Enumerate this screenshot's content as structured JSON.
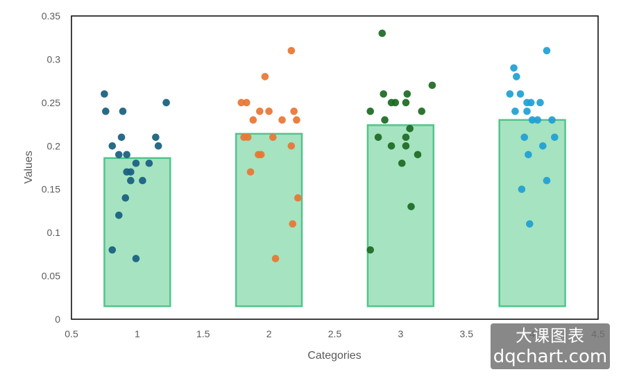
{
  "chart_data": {
    "type": "scatter",
    "xlabel": "Categories",
    "ylabel": "Values",
    "xlim": [
      0.5,
      4.5
    ],
    "ylim": [
      0,
      0.35
    ],
    "x_ticks": [
      "0.5",
      "1",
      "1.5",
      "2",
      "2.5",
      "3",
      "3.5",
      "4",
      "4.5"
    ],
    "y_ticks": [
      "0",
      "0.05",
      "0.1",
      "0.15",
      "0.2",
      "0.25",
      "0.3",
      "0.35"
    ],
    "grid": false,
    "bars": {
      "x": [
        1,
        2,
        3,
        4
      ],
      "bottom": 0.015,
      "top": [
        0.186,
        0.214,
        0.224,
        0.23
      ],
      "width": 0.5,
      "fill": "#a6e3c1",
      "stroke": "#52c48a"
    },
    "series": [
      {
        "color": "#17607f",
        "points": [
          [
            0.75,
            0.26
          ],
          [
            0.76,
            0.24
          ],
          [
            0.89,
            0.24
          ],
          [
            1.22,
            0.25
          ],
          [
            0.81,
            0.2
          ],
          [
            0.88,
            0.21
          ],
          [
            0.86,
            0.19
          ],
          [
            0.92,
            0.19
          ],
          [
            1.14,
            0.21
          ],
          [
            1.16,
            0.2
          ],
          [
            0.99,
            0.18
          ],
          [
            1.09,
            0.18
          ],
          [
            0.92,
            0.17
          ],
          [
            0.95,
            0.17
          ],
          [
            0.95,
            0.16
          ],
          [
            1.04,
            0.16
          ],
          [
            0.91,
            0.14
          ],
          [
            0.86,
            0.12
          ],
          [
            0.81,
            0.08
          ],
          [
            0.99,
            0.07
          ]
        ]
      },
      {
        "color": "#e87634",
        "points": [
          [
            2.17,
            0.31
          ],
          [
            1.97,
            0.28
          ],
          [
            1.79,
            0.25
          ],
          [
            1.83,
            0.25
          ],
          [
            1.93,
            0.24
          ],
          [
            2.0,
            0.24
          ],
          [
            2.19,
            0.24
          ],
          [
            1.88,
            0.23
          ],
          [
            2.1,
            0.23
          ],
          [
            2.21,
            0.23
          ],
          [
            1.81,
            0.21
          ],
          [
            1.84,
            0.21
          ],
          [
            2.03,
            0.21
          ],
          [
            2.17,
            0.2
          ],
          [
            1.92,
            0.19
          ],
          [
            1.94,
            0.19
          ],
          [
            1.86,
            0.17
          ],
          [
            2.22,
            0.14
          ],
          [
            2.18,
            0.11
          ],
          [
            2.05,
            0.07
          ]
        ]
      },
      {
        "color": "#1d6b24",
        "points": [
          [
            2.86,
            0.33
          ],
          [
            3.24,
            0.27
          ],
          [
            2.87,
            0.26
          ],
          [
            3.05,
            0.26
          ],
          [
            2.93,
            0.25
          ],
          [
            2.96,
            0.25
          ],
          [
            3.04,
            0.25
          ],
          [
            2.77,
            0.24
          ],
          [
            3.16,
            0.24
          ],
          [
            2.88,
            0.23
          ],
          [
            3.07,
            0.22
          ],
          [
            2.83,
            0.21
          ],
          [
            3.04,
            0.21
          ],
          [
            2.93,
            0.2
          ],
          [
            3.04,
            0.2
          ],
          [
            3.13,
            0.19
          ],
          [
            3.01,
            0.18
          ],
          [
            3.08,
            0.13
          ],
          [
            2.77,
            0.08
          ]
        ]
      },
      {
        "color": "#1fa0d4",
        "points": [
          [
            4.11,
            0.31
          ],
          [
            3.86,
            0.29
          ],
          [
            3.88,
            0.28
          ],
          [
            3.83,
            0.26
          ],
          [
            3.91,
            0.26
          ],
          [
            3.96,
            0.25
          ],
          [
            3.99,
            0.25
          ],
          [
            4.06,
            0.25
          ],
          [
            3.87,
            0.24
          ],
          [
            3.96,
            0.24
          ],
          [
            4.0,
            0.23
          ],
          [
            4.04,
            0.23
          ],
          [
            4.15,
            0.23
          ],
          [
            3.94,
            0.21
          ],
          [
            4.17,
            0.21
          ],
          [
            4.08,
            0.2
          ],
          [
            3.97,
            0.19
          ],
          [
            4.11,
            0.16
          ],
          [
            3.92,
            0.15
          ],
          [
            3.98,
            0.11
          ]
        ]
      }
    ]
  },
  "watermark": {
    "line1": "大课图表",
    "line2": "dqchart.com"
  }
}
